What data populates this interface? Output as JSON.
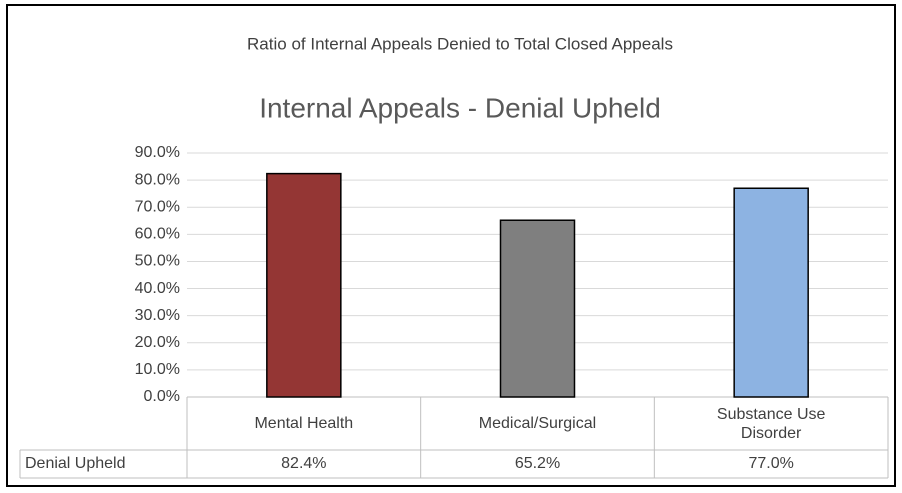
{
  "chart_data": {
    "type": "bar",
    "header": "Ratio of Internal Appeals Denied to Total Closed Appeals",
    "title": "Internal Appeals - Denial Upheld",
    "categories": [
      "Mental Health",
      "Medical/Surgical",
      "Substance Use Disorder"
    ],
    "series": [
      {
        "name": "Denial Upheld",
        "colors": [
          "#943634",
          "#7f7f7f",
          "#8db3e2"
        ],
        "values": [
          82.4,
          65.2,
          77.0
        ],
        "value_labels": [
          "82.4%",
          "65.2%",
          "77.0%"
        ]
      }
    ],
    "ylim": [
      0,
      90
    ],
    "yticks": [
      {
        "value": 0,
        "label": "0.0%"
      },
      {
        "value": 10,
        "label": "10.0%"
      },
      {
        "value": 20,
        "label": "20.0%"
      },
      {
        "value": 30,
        "label": "30.0%"
      },
      {
        "value": 40,
        "label": "40.0%"
      },
      {
        "value": 50,
        "label": "50.0%"
      },
      {
        "value": 60,
        "label": "60.0%"
      },
      {
        "value": 70,
        "label": "70.0%"
      },
      {
        "value": 80,
        "label": "80.0%"
      },
      {
        "value": 90,
        "label": "90.0%"
      }
    ],
    "grid": true
  }
}
